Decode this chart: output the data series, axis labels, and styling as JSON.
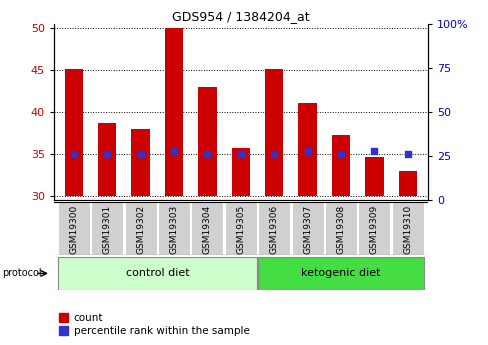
{
  "title": "GDS954 / 1384204_at",
  "samples": [
    "GSM19300",
    "GSM19301",
    "GSM19302",
    "GSM19303",
    "GSM19304",
    "GSM19305",
    "GSM19306",
    "GSM19307",
    "GSM19308",
    "GSM19309",
    "GSM19310"
  ],
  "counts": [
    45.2,
    38.7,
    38.0,
    50.0,
    43.0,
    35.7,
    45.2,
    41.1,
    37.3,
    34.7,
    33.0
  ],
  "percentile_ranks": [
    25.0,
    25.0,
    25.0,
    27.0,
    25.0,
    25.0,
    25.0,
    27.0,
    25.0,
    27.0,
    25.0
  ],
  "ylim_left": [
    29.5,
    50.5
  ],
  "ylim_right": [
    0,
    100
  ],
  "yticks_left": [
    30,
    35,
    40,
    45,
    50
  ],
  "yticks_right": [
    0,
    25,
    50,
    75,
    100
  ],
  "bar_color": "#cc0000",
  "dot_color": "#3333cc",
  "bar_bottom": 30,
  "control_diet_label": "control diet",
  "ketogenic_diet_label": "ketogenic diet",
  "protocol_label": "protocol",
  "legend_count_label": "count",
  "legend_percentile_label": "percentile rank within the sample",
  "control_bg": "#ccffcc",
  "ketogenic_bg": "#44dd44",
  "sample_bg": "#d0d0d0",
  "right_axis_color": "#0000cc",
  "left_axis_color": "#cc0000",
  "n_control": 6,
  "n_ketogenic": 5
}
